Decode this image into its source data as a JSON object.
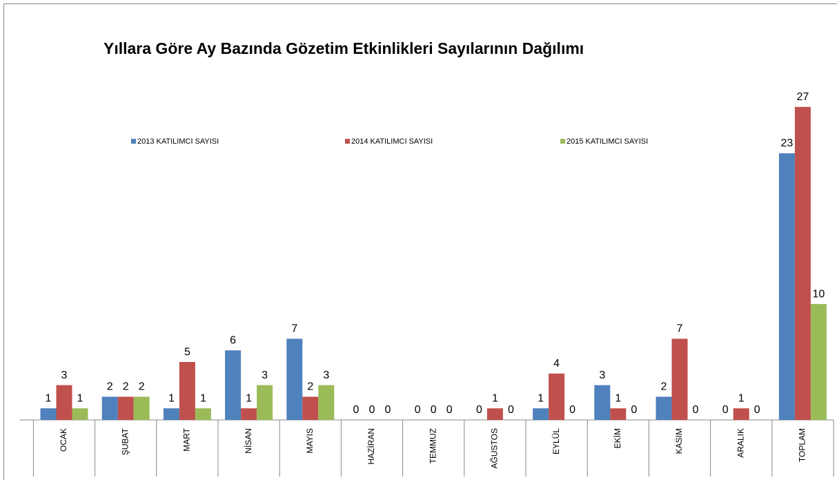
{
  "chart_data": {
    "type": "bar",
    "title": "Yıllara Göre Ay Bazında Gözetim Etkinlikleri Sayılarının Dağılımı",
    "categories": [
      "OCAK",
      "ŞUBAT",
      "MART",
      "NİSAN",
      "MAYIS",
      "HAZİRAN",
      "TEMMUZ",
      "AĞUSTOS",
      "EYLÜL",
      "EKİM",
      "KASIM",
      "ARALIK",
      "TOPLAM"
    ],
    "series": [
      {
        "name": "2013 KATILIMCI SAYISI",
        "color": "#4f81bd",
        "values": [
          1,
          2,
          1,
          6,
          7,
          0,
          0,
          0,
          1,
          3,
          2,
          0,
          23
        ]
      },
      {
        "name": "2014 KATILIMCI SAYISI",
        "color": "#c0504d",
        "values": [
          3,
          2,
          5,
          1,
          2,
          0,
          0,
          1,
          4,
          1,
          7,
          1,
          27
        ]
      },
      {
        "name": "2015 KATILIMCI SAYISI",
        "color": "#9bbb59",
        "values": [
          1,
          2,
          1,
          3,
          3,
          0,
          0,
          0,
          0,
          0,
          0,
          0,
          10
        ]
      }
    ],
    "ylim": [
      0,
      28
    ],
    "legend": "top"
  }
}
